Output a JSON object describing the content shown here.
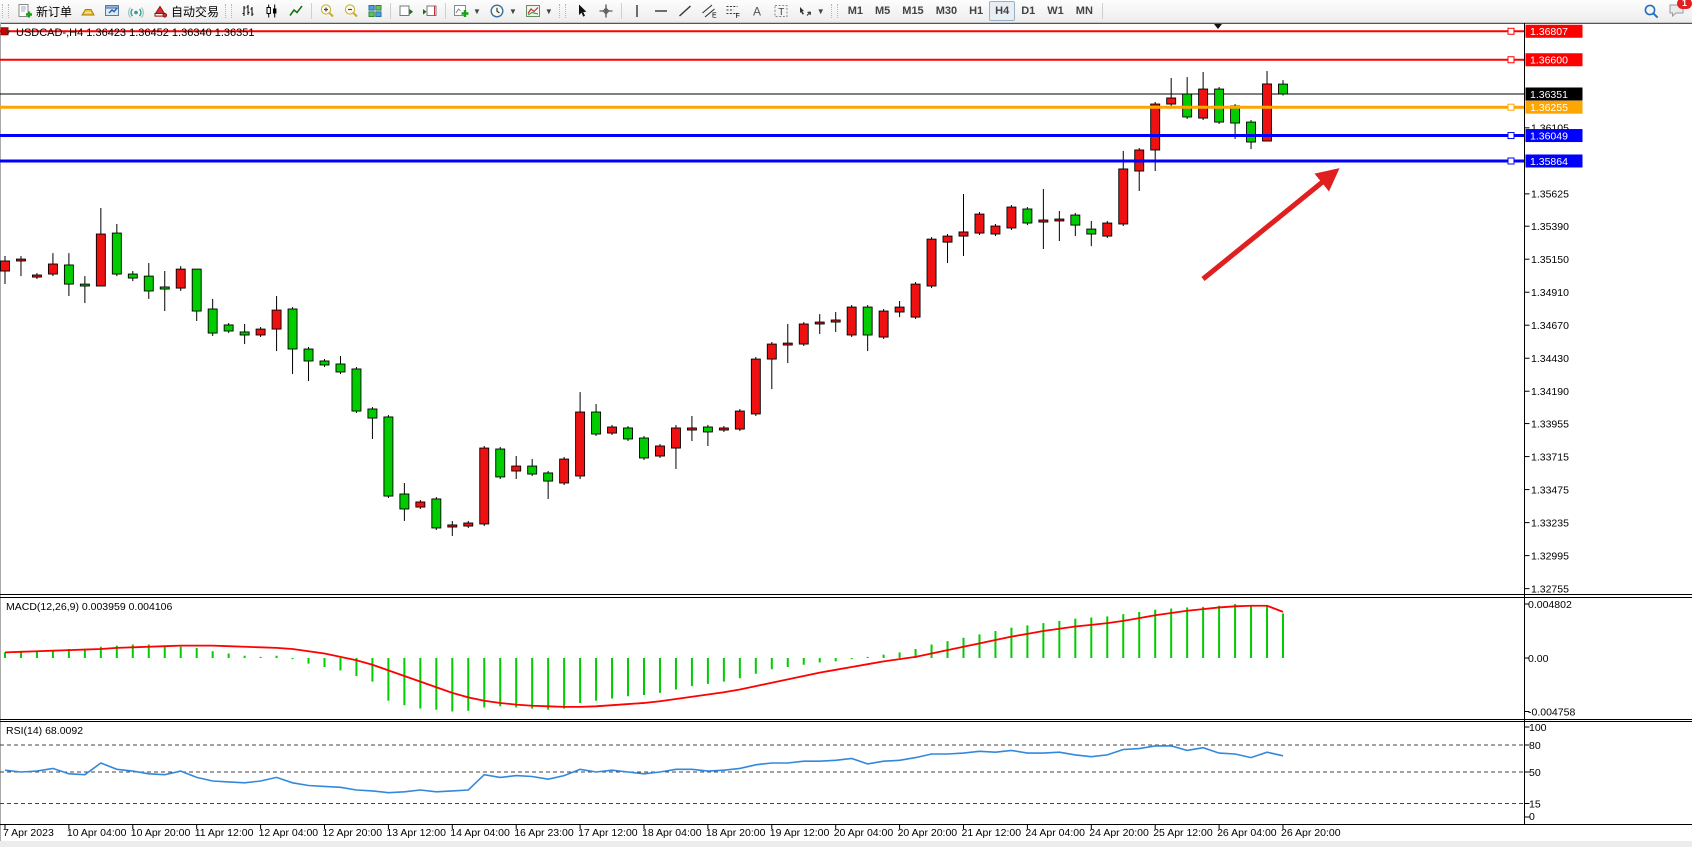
{
  "toolbar": {
    "new_order_label": "新订单",
    "autotrading_label": "自动交易",
    "timeframes": [
      "M1",
      "M5",
      "M15",
      "M30",
      "H1",
      "H4",
      "D1",
      "W1",
      "MN"
    ],
    "active_timeframe": "H4",
    "badge_count": "1"
  },
  "chart": {
    "title": "USDCAD-,H4  1.36423 1.36452 1.36340 1.36351",
    "symbol": "USDCAD-",
    "period": "H4",
    "open": "1.36423",
    "high": "1.36452",
    "low": "1.36340",
    "close": "1.36351"
  },
  "chart_data": {
    "type": "candlestick",
    "symbol": "USDCAD",
    "period": "H4",
    "colors": {
      "bull": "#ee1111",
      "bear": "#00cc00",
      "outline": "#000000",
      "arrow": "#e02020",
      "macd_histogram": "#00cc00",
      "macd_signal": "#ff0000",
      "rsi_line": "#3388dd"
    },
    "current_price": {
      "price": "1.36351",
      "color": "#000000"
    },
    "hlines": [
      {
        "price": "1.36807",
        "value": 1.36807,
        "color": "#ff0000",
        "width": 2
      },
      {
        "price": "1.36600",
        "value": 1.366,
        "color": "#ff0000",
        "width": 2
      },
      {
        "price": "1.36255",
        "value": 1.36255,
        "color": "#ffa500",
        "width": 3
      },
      {
        "price": "1.36049",
        "value": 1.36049,
        "color": "#0000ff",
        "width": 3
      },
      {
        "price": "1.35864",
        "value": 1.35864,
        "color": "#0000ff",
        "width": 3
      }
    ],
    "y_ticks": [
      "1.36105",
      "1.35625",
      "1.35390",
      "1.35150",
      "1.34910",
      "1.34670",
      "1.34430",
      "1.34190",
      "1.33955",
      "1.33715",
      "1.33475",
      "1.33235",
      "1.32995",
      "1.32755"
    ],
    "time_labels": [
      "7 Apr 2023",
      "10 Apr 04:00",
      "10 Apr 20:00",
      "11 Apr 12:00",
      "12 Apr 04:00",
      "12 Apr 20:00",
      "13 Apr 12:00",
      "14 Apr 04:00",
      "16 Apr 23:00",
      "17 Apr 12:00",
      "18 Apr 04:00",
      "18 Apr 20:00",
      "19 Apr 12:00",
      "20 Apr 04:00",
      "20 Apr 20:00",
      "21 Apr 12:00",
      "24 Apr 04:00",
      "24 Apr 20:00",
      "25 Apr 12:00",
      "26 Apr 04:00",
      "26 Apr 20:00"
    ],
    "candles": [
      [
        1.35064,
        1.35173,
        1.3497,
        1.35137
      ],
      [
        1.35137,
        1.35173,
        1.35027,
        1.35151
      ],
      [
        1.3502,
        1.35049,
        1.35006,
        1.35035
      ],
      [
        1.35042,
        1.35194,
        1.35027,
        1.35115
      ],
      [
        1.35108,
        1.35194,
        1.34882,
        1.34969
      ],
      [
        1.34969,
        1.35027,
        1.34831,
        1.34955
      ],
      [
        1.34955,
        1.35522,
        1.34955,
        1.35333
      ],
      [
        1.3534,
        1.35406,
        1.35027,
        1.35042
      ],
      [
        1.35042,
        1.35064,
        1.34991,
        1.35013
      ],
      [
        1.35027,
        1.35122,
        1.34861,
        1.34919
      ],
      [
        1.34948,
        1.35064,
        1.34773,
        1.34933
      ],
      [
        1.3494,
        1.351,
        1.34919,
        1.35078
      ],
      [
        1.35078,
        1.35078,
        1.34701,
        1.34773
      ],
      [
        1.34788,
        1.34861,
        1.34592,
        1.34613
      ],
      [
        1.34672,
        1.34686,
        1.34613,
        1.34628
      ],
      [
        1.34621,
        1.34679,
        1.34533,
        1.34599
      ],
      [
        1.34599,
        1.34657,
        1.34584,
        1.34642
      ],
      [
        1.34642,
        1.34882,
        1.34482,
        1.3478
      ],
      [
        1.34788,
        1.34802,
        1.34315,
        1.34497
      ],
      [
        1.34497,
        1.34512,
        1.34264,
        1.3441
      ],
      [
        1.3441,
        1.34424,
        1.34366,
        1.34381
      ],
      [
        1.34388,
        1.34446,
        1.34315,
        1.3433
      ],
      [
        1.34352,
        1.34366,
        1.34032,
        1.34046
      ],
      [
        1.34061,
        1.34075,
        1.33843,
        1.33995
      ],
      [
        1.34003,
        1.34017,
        1.33414,
        1.33428
      ],
      [
        1.33443,
        1.33523,
        1.33247,
        1.33334
      ],
      [
        1.33348,
        1.33399,
        1.33334,
        1.33385
      ],
      [
        1.33407,
        1.33421,
        1.33181,
        1.33196
      ],
      [
        1.33203,
        1.33247,
        1.33138,
        1.33218
      ],
      [
        1.3321,
        1.33247,
        1.33196,
        1.33232
      ],
      [
        1.33225,
        1.33792,
        1.3321,
        1.33777
      ],
      [
        1.3377,
        1.33785,
        1.33552,
        1.33567
      ],
      [
        1.3361,
        1.33719,
        1.33552,
        1.33646
      ],
      [
        1.33646,
        1.33697,
        1.33574,
        1.33588
      ],
      [
        1.33596,
        1.3361,
        1.33407,
        1.33537
      ],
      [
        1.33523,
        1.33712,
        1.33508,
        1.33697
      ],
      [
        1.33574,
        1.34184,
        1.33552,
        1.34039
      ],
      [
        1.34039,
        1.34097,
        1.33865,
        1.33879
      ],
      [
        1.33886,
        1.33945,
        1.33872,
        1.3393
      ],
      [
        1.33923,
        1.33937,
        1.33828,
        1.33843
      ],
      [
        1.3385,
        1.33865,
        1.3369,
        1.33705
      ],
      [
        1.33719,
        1.33806,
        1.33705,
        1.33792
      ],
      [
        1.33777,
        1.33945,
        1.33625,
        1.33923
      ],
      [
        1.33908,
        1.3401,
        1.33828,
        1.33923
      ],
      [
        1.3393,
        1.33945,
        1.33792,
        1.33894
      ],
      [
        1.33908,
        1.33937,
        1.33894,
        1.33923
      ],
      [
        1.33915,
        1.34061,
        1.33901,
        1.34046
      ],
      [
        1.34025,
        1.34439,
        1.3401,
        1.34424
      ],
      [
        1.34424,
        1.34548,
        1.34206,
        1.34533
      ],
      [
        1.34526,
        1.34679,
        1.34395,
        1.3454
      ],
      [
        1.34533,
        1.34693,
        1.34519,
        1.34679
      ],
      [
        1.34679,
        1.34751,
        1.34606,
        1.34693
      ],
      [
        1.34693,
        1.34766,
        1.34621,
        1.34708
      ],
      [
        1.34599,
        1.34817,
        1.34584,
        1.34802
      ],
      [
        1.34802,
        1.34817,
        1.34482,
        1.34599
      ],
      [
        1.34584,
        1.34788,
        1.3457,
        1.34773
      ],
      [
        1.34766,
        1.34846,
        1.34729,
        1.34802
      ],
      [
        1.34729,
        1.34984,
        1.34715,
        1.34969
      ],
      [
        1.34955,
        1.35311,
        1.3494,
        1.35296
      ],
      [
        1.35274,
        1.35333,
        1.35122,
        1.35318
      ],
      [
        1.35318,
        1.35624,
        1.35173,
        1.35348
      ],
      [
        1.3534,
        1.35493,
        1.35326,
        1.35478
      ],
      [
        1.35333,
        1.35406,
        1.35318,
        1.35391
      ],
      [
        1.35377,
        1.35544,
        1.35362,
        1.35529
      ],
      [
        1.35515,
        1.35529,
        1.35398,
        1.35413
      ],
      [
        1.3542,
        1.3566,
        1.35224,
        1.35435
      ],
      [
        1.35428,
        1.355,
        1.35282,
        1.35442
      ],
      [
        1.35471,
        1.35486,
        1.35318,
        1.35398
      ],
      [
        1.35369,
        1.35428,
        1.35245,
        1.35333
      ],
      [
        1.35318,
        1.35428,
        1.35304,
        1.35413
      ],
      [
        1.35406,
        1.35937,
        1.35391,
        1.35806
      ],
      [
        1.35791,
        1.35958,
        1.35646,
        1.35944
      ],
      [
        1.35944,
        1.36293,
        1.35791,
        1.36278
      ],
      [
        1.36278,
        1.36467,
        1.36264,
        1.36322
      ],
      [
        1.36351,
        1.36474,
        1.36169,
        1.36184
      ],
      [
        1.36176,
        1.36511,
        1.36162,
        1.36387
      ],
      [
        1.36387,
        1.36402,
        1.36133,
        1.36147
      ],
      [
        1.36264,
        1.36278,
        1.36024,
        1.3614
      ],
      [
        1.36147,
        1.36162,
        1.35951,
        1.36002
      ],
      [
        1.36009,
        1.36518,
        1.36009,
        1.36424
      ],
      [
        1.36423,
        1.36452,
        1.3634,
        1.36351
      ]
    ],
    "macd": {
      "label": "MACD(12,26,9) 0.003959 0.004106",
      "value": "0.003959",
      "signal_value": "0.004106",
      "axis": [
        "0.004802",
        "0.00",
        "-0.004758"
      ],
      "histogram": [
        0.0005,
        0.0006,
        0.0006,
        0.0007,
        0.0008,
        0.0008,
        0.001,
        0.0011,
        0.0012,
        0.0012,
        0.0011,
        0.001,
        0.0009,
        0.0006,
        0.0004,
        0.0002,
        0.0001,
        0.0002,
        -0.0001,
        -0.0005,
        -0.0008,
        -0.0011,
        -0.0016,
        -0.0021,
        -0.0038,
        -0.0042,
        -0.0045,
        -0.0046,
        -0.004758,
        -0.0047,
        -0.0044,
        -0.0043,
        -0.0044,
        -0.0045,
        -0.0046,
        -0.0045,
        -0.004,
        -0.0038,
        -0.0036,
        -0.0034,
        -0.0033,
        -0.0031,
        -0.0028,
        -0.0025,
        -0.0023,
        -0.0021,
        -0.0018,
        -0.0014,
        -0.001,
        -0.0008,
        -0.0006,
        -0.0004,
        -0.0003,
        -0.0001,
        0.0001,
        0.0003,
        0.0005,
        0.0008,
        0.0012,
        0.0015,
        0.0018,
        0.0021,
        0.0024,
        0.0027,
        0.0029,
        0.0031,
        0.0033,
        0.0035,
        0.0036,
        0.0037,
        0.0039,
        0.0041,
        0.0043,
        0.0044,
        0.0045,
        0.00455,
        0.00465,
        0.004802,
        0.0047,
        0.00466,
        0.003959
      ],
      "signal": [
        0.0005,
        0.00055,
        0.0006,
        0.00065,
        0.0007,
        0.00075,
        0.0008,
        0.0009,
        0.00095,
        0.001,
        0.00105,
        0.0011,
        0.0011,
        0.0011,
        0.00105,
        0.001,
        0.00095,
        0.0009,
        0.0008,
        0.0006,
        0.0004,
        0.0001,
        -0.0002,
        -0.0006,
        -0.0011,
        -0.0016,
        -0.0021,
        -0.0026,
        -0.0031,
        -0.0035,
        -0.0038,
        -0.004,
        -0.00415,
        -0.00425,
        -0.0043,
        -0.00435,
        -0.00435,
        -0.0043,
        -0.0042,
        -0.0041,
        -0.004,
        -0.00385,
        -0.00365,
        -0.00345,
        -0.00325,
        -0.00305,
        -0.0028,
        -0.0025,
        -0.0022,
        -0.0019,
        -0.0016,
        -0.0013,
        -0.00105,
        -0.0008,
        -0.00055,
        -0.0003,
        -0.0001,
        0.0001,
        0.0004,
        0.0007,
        0.001,
        0.0013,
        0.0016,
        0.0019,
        0.00215,
        0.0024,
        0.0026,
        0.0028,
        0.00295,
        0.0031,
        0.0033,
        0.00355,
        0.0038,
        0.004,
        0.0042,
        0.00435,
        0.0045,
        0.0046,
        0.00465,
        0.00465,
        0.004106
      ]
    },
    "rsi": {
      "label": "RSI(14) 68.0092",
      "value": "68.0092",
      "axis": [
        "100",
        "80",
        "50",
        "15",
        "0"
      ],
      "dashed_levels": [
        80,
        50,
        15
      ],
      "values": [
        52,
        50,
        51,
        54,
        48,
        47,
        60,
        53,
        51,
        48,
        47,
        51,
        44,
        40,
        39,
        38,
        40,
        44,
        38,
        35,
        34,
        33,
        30,
        29,
        27,
        28,
        30,
        28,
        29,
        30,
        47,
        44,
        46,
        45,
        42,
        46,
        53,
        50,
        52,
        50,
        48,
        50,
        53,
        53,
        51,
        52,
        54,
        58,
        60,
        60,
        62,
        62,
        63,
        65,
        59,
        62,
        63,
        66,
        70,
        70,
        71,
        73,
        72,
        74,
        71,
        71,
        72,
        69,
        67,
        69,
        75,
        76,
        79,
        79,
        74,
        77,
        71,
        70,
        66,
        72,
        68.0092
      ]
    },
    "arrow": {
      "from_price": 1.3488,
      "to_price": 1.357,
      "color": "#e02020",
      "note": "red up-trend arrow pointing to 1.35864 support line"
    }
  }
}
